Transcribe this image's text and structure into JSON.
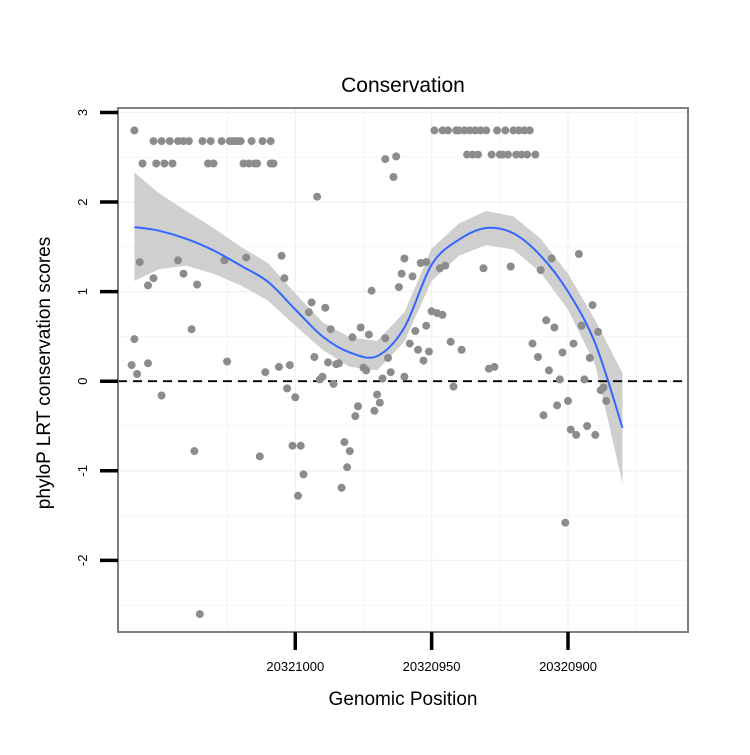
{
  "chart_data": {
    "type": "scatter",
    "title": "Conservation",
    "xlabel": "Genomic Position",
    "ylabel": "phyloP LRT conservation scores",
    "x_reversed": true,
    "xlim": [
      20321065,
      20320856
    ],
    "ylim": [
      -2.8,
      3.05
    ],
    "x_ticks": [
      20321000,
      20320950,
      20320900
    ],
    "x_tick_labels": [
      "20321000",
      "20320950",
      "20320900"
    ],
    "y_ticks": [
      -2,
      -1,
      0,
      1,
      2,
      3
    ],
    "y_tick_labels": [
      "-2",
      "-1",
      "0",
      "1",
      "2",
      "3"
    ],
    "grid": true,
    "reference_line": {
      "y": 0,
      "style": "dashed"
    },
    "colors": {
      "points": "#8c8c8c",
      "smooth_line": "#3366ff",
      "ribbon": "#cfcfcf",
      "panel_border": "#7f7f7f",
      "grid": "#f2f2f2"
    },
    "series": [
      {
        "type": "scatter",
        "points": [
          [
            20321059,
            2.8
          ],
          [
            20321059,
            0.47
          ],
          [
            20321060,
            0.18
          ],
          [
            20321058,
            0.08
          ],
          [
            20321057,
            1.33
          ],
          [
            20321056,
            2.43
          ],
          [
            20321054,
            1.07
          ],
          [
            20321054,
            0.2
          ],
          [
            20321052,
            2.68
          ],
          [
            20321052,
            1.15
          ],
          [
            20321051,
            2.43
          ],
          [
            20321049,
            2.68
          ],
          [
            20321049,
            -0.16
          ],
          [
            20321048,
            2.43
          ],
          [
            20321046,
            2.68
          ],
          [
            20321045,
            2.43
          ],
          [
            20321043,
            2.68
          ],
          [
            20321043,
            1.35
          ],
          [
            20321041,
            2.68
          ],
          [
            20321041,
            1.2
          ],
          [
            20321039,
            2.68
          ],
          [
            20321038,
            0.58
          ],
          [
            20321037,
            -0.78
          ],
          [
            20321036,
            1.08
          ],
          [
            20321035,
            -2.6
          ],
          [
            20321034,
            2.68
          ],
          [
            20321032,
            2.43
          ],
          [
            20321031,
            2.68
          ],
          [
            20321030,
            2.43
          ],
          [
            20321027,
            2.68
          ],
          [
            20321026,
            1.35
          ],
          [
            20321025,
            0.22
          ],
          [
            20321024,
            2.68
          ],
          [
            20321023,
            2.68
          ],
          [
            20321022,
            2.68
          ],
          [
            20321021,
            2.68
          ],
          [
            20321020,
            2.68
          ],
          [
            20321019,
            2.43
          ],
          [
            20321018,
            1.38
          ],
          [
            20321017,
            2.43
          ],
          [
            20321016,
            2.68
          ],
          [
            20321015,
            2.43
          ],
          [
            20321014,
            2.43
          ],
          [
            20321013,
            -0.84
          ],
          [
            20321012,
            2.68
          ],
          [
            20321011,
            0.1
          ],
          [
            20321009,
            2.68
          ],
          [
            20321009,
            2.43
          ],
          [
            20321008,
            2.43
          ],
          [
            20321006,
            0.16
          ],
          [
            20321005,
            1.4
          ],
          [
            20321004,
            1.15
          ],
          [
            20321003,
            -0.08
          ],
          [
            20321002,
            0.18
          ],
          [
            20321001,
            -0.72
          ],
          [
            20321000,
            -0.18
          ],
          [
            20320999,
            -1.28
          ],
          [
            20320998,
            -0.72
          ],
          [
            20320997,
            -1.04
          ],
          [
            20320995,
            0.77
          ],
          [
            20320994,
            0.88
          ],
          [
            20320993,
            0.27
          ],
          [
            20320992,
            2.06
          ],
          [
            20320991,
            0.02
          ],
          [
            20320990,
            0.05
          ],
          [
            20320989,
            0.82
          ],
          [
            20320988,
            0.21
          ],
          [
            20320987,
            0.58
          ],
          [
            20320986,
            -0.03
          ],
          [
            20320985,
            0.19
          ],
          [
            20320984,
            0.2
          ],
          [
            20320983,
            -1.19
          ],
          [
            20320982,
            -0.68
          ],
          [
            20320981,
            -0.96
          ],
          [
            20320980,
            -0.78
          ],
          [
            20320979,
            0.49
          ],
          [
            20320978,
            -0.39
          ],
          [
            20320977,
            -0.28
          ],
          [
            20320976,
            0.6
          ],
          [
            20320975,
            0.15
          ],
          [
            20320974,
            0.12
          ],
          [
            20320973,
            0.52
          ],
          [
            20320972,
            1.01
          ],
          [
            20320971,
            -0.33
          ],
          [
            20320970,
            -0.15
          ],
          [
            20320969,
            -0.24
          ],
          [
            20320968,
            0.03
          ],
          [
            20320967,
            0.48
          ],
          [
            20320967,
            2.48
          ],
          [
            20320966,
            0.26
          ],
          [
            20320965,
            0.1
          ],
          [
            20320964,
            2.28
          ],
          [
            20320963,
            2.51
          ],
          [
            20320962,
            1.05
          ],
          [
            20320961,
            1.2
          ],
          [
            20320960,
            0.05
          ],
          [
            20320960,
            1.37
          ],
          [
            20320958,
            0.42
          ],
          [
            20320957,
            1.17
          ],
          [
            20320956,
            0.56
          ],
          [
            20320955,
            0.35
          ],
          [
            20320954,
            1.32
          ],
          [
            20320953,
            0.23
          ],
          [
            20320952,
            1.33
          ],
          [
            20320952,
            0.62
          ],
          [
            20320951,
            0.33
          ],
          [
            20320950,
            0.78
          ],
          [
            20320949,
            2.8
          ],
          [
            20320948,
            0.76
          ],
          [
            20320947,
            1.26
          ],
          [
            20320946,
            0.74
          ],
          [
            20320946,
            2.8
          ],
          [
            20320945,
            1.29
          ],
          [
            20320944,
            2.8
          ],
          [
            20320943,
            0.44
          ],
          [
            20320942,
            -0.06
          ],
          [
            20320941,
            2.8
          ],
          [
            20320940,
            2.8
          ],
          [
            20320939,
            0.35
          ],
          [
            20320938,
            2.8
          ],
          [
            20320937,
            2.53
          ],
          [
            20320936,
            2.8
          ],
          [
            20320935,
            2.53
          ],
          [
            20320934,
            2.8
          ],
          [
            20320933,
            2.53
          ],
          [
            20320932,
            2.8
          ],
          [
            20320931,
            1.26
          ],
          [
            20320930,
            2.8
          ],
          [
            20320929,
            0.14
          ],
          [
            20320928,
            2.53
          ],
          [
            20320927,
            0.16
          ],
          [
            20320926,
            2.8
          ],
          [
            20320925,
            2.53
          ],
          [
            20320924,
            2.53
          ],
          [
            20320923,
            2.8
          ],
          [
            20320922,
            2.53
          ],
          [
            20320921,
            1.28
          ],
          [
            20320920,
            2.8
          ],
          [
            20320919,
            2.53
          ],
          [
            20320918,
            2.8
          ],
          [
            20320917,
            2.53
          ],
          [
            20320916,
            2.8
          ],
          [
            20320915,
            2.53
          ],
          [
            20320914,
            2.8
          ],
          [
            20320913,
            0.42
          ],
          [
            20320912,
            2.53
          ],
          [
            20320911,
            0.27
          ],
          [
            20320910,
            1.24
          ],
          [
            20320909,
            -0.38
          ],
          [
            20320908,
            0.68
          ],
          [
            20320907,
            0.12
          ],
          [
            20320906,
            1.37
          ],
          [
            20320905,
            0.6
          ],
          [
            20320904,
            -0.27
          ],
          [
            20320903,
            0.02
          ],
          [
            20320902,
            0.32
          ],
          [
            20320901,
            -1.58
          ],
          [
            20320900,
            -0.22
          ],
          [
            20320899,
            -0.54
          ],
          [
            20320898,
            0.42
          ],
          [
            20320897,
            -0.6
          ],
          [
            20320896,
            1.42
          ],
          [
            20320895,
            0.62
          ],
          [
            20320894,
            0.02
          ],
          [
            20320893,
            -0.5
          ],
          [
            20320892,
            0.26
          ],
          [
            20320891,
            0.85
          ],
          [
            20320890,
            -0.6
          ],
          [
            20320889,
            0.55
          ],
          [
            20320888,
            -0.1
          ],
          [
            20320887,
            -0.07
          ],
          [
            20320886,
            -0.22
          ]
        ]
      },
      {
        "type": "loess",
        "x": [
          20321059,
          20321050,
          20321040,
          20321030,
          20321020,
          20321010,
          20321000,
          20320990,
          20320980,
          20320970,
          20320960,
          20320950,
          20320940,
          20320930,
          20320920,
          20320910,
          20320900,
          20320890,
          20320880
        ],
        "y": [
          1.72,
          1.68,
          1.59,
          1.46,
          1.29,
          1.11,
          0.8,
          0.5,
          0.32,
          0.28,
          0.6,
          1.3,
          1.58,
          1.71,
          1.65,
          1.4,
          1.0,
          0.42,
          -0.52
        ],
        "ymin": [
          1.12,
          1.25,
          1.29,
          1.2,
          1.07,
          0.9,
          0.62,
          0.35,
          0.16,
          0.12,
          0.44,
          1.12,
          1.4,
          1.52,
          1.47,
          1.21,
          0.8,
          0.18,
          -1.14
        ],
        "ymax": [
          2.33,
          2.1,
          1.9,
          1.71,
          1.5,
          1.32,
          0.98,
          0.66,
          0.49,
          0.45,
          0.77,
          1.48,
          1.76,
          1.9,
          1.84,
          1.59,
          1.2,
          0.68,
          0.09
        ]
      }
    ]
  }
}
